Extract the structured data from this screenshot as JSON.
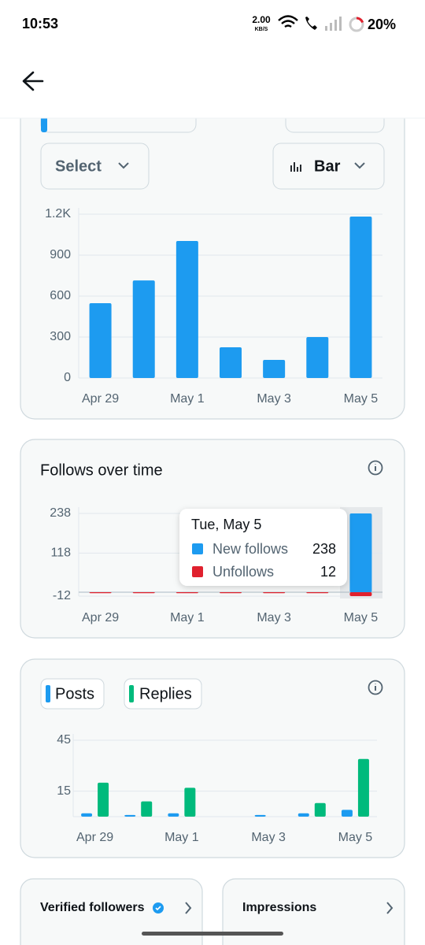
{
  "status_bar": {
    "time": "10:53",
    "net_speed": "2.00",
    "net_unit": "KB/S",
    "battery": "20%"
  },
  "controls": {
    "select": "Select",
    "chart_type": "Bar"
  },
  "chart_data": [
    {
      "type": "bar",
      "categories": [
        "Apr 29",
        null,
        "May 1",
        null,
        "May 3",
        null,
        "May 5"
      ],
      "values": [
        548,
        715,
        1004,
        225,
        133,
        300,
        1183
      ],
      "color": "#1d9bf0",
      "ylim": [
        0,
        1200
      ],
      "yticks": [
        0,
        300,
        600,
        900,
        {
          "value": 1200,
          "label": "1.2K"
        }
      ],
      "grid": true
    },
    {
      "type": "bar",
      "title": "Follows over time",
      "categories": [
        "Apr 29",
        null,
        "May 1",
        null,
        "May 3",
        null,
        "May 5"
      ],
      "series": [
        {
          "name": "New follows",
          "color": "#1d9bf0",
          "values": [
            0,
            0,
            0,
            0,
            0,
            0,
            238
          ]
        },
        {
          "name": "Unfollows",
          "color": "#e0212e",
          "values": [
            -3,
            -3,
            -3,
            -3,
            -3,
            -3,
            -12
          ],
          "value_labels": [
            null,
            null,
            null,
            null,
            null,
            null,
            "12"
          ]
        }
      ],
      "ylim": [
        -12,
        238
      ],
      "yticks": [
        -12,
        118,
        238
      ],
      "grid": true,
      "tooltip": {
        "title": "Tue, May 5"
      }
    },
    {
      "type": "bar",
      "grouped": true,
      "categories": [
        "Apr 29",
        null,
        "May 1",
        null,
        "May 3",
        null,
        "May 5"
      ],
      "series": [
        {
          "name": "Posts",
          "color": "#1d9bf0",
          "values": [
            2,
            1,
            2,
            0,
            1,
            2,
            4
          ]
        },
        {
          "name": "Replies",
          "color": "#00ba7c",
          "values": [
            20,
            9,
            17,
            0,
            0,
            8,
            34
          ]
        }
      ],
      "ylim": [
        0,
        45
      ],
      "yticks": [
        15,
        45
      ],
      "grid": true
    }
  ],
  "cards": [
    "Verified followers",
    "Impressions"
  ]
}
